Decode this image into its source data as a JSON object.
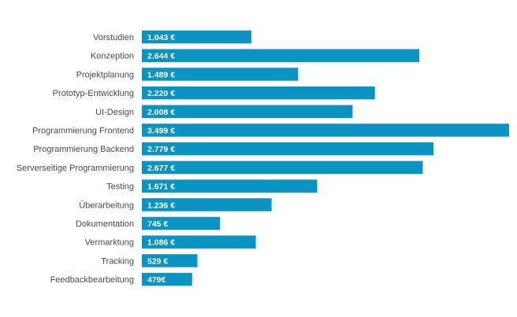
{
  "chart_data": {
    "type": "bar",
    "orientation": "horizontal",
    "categories": [
      "Vorstudien",
      "Konzeption",
      "Projektplanung",
      "Prototyp-Entwicklung",
      "UI-Design",
      "Programmierung Frontend",
      "Programmierung Backend",
      "Serverseitige Programmierung",
      "Testing",
      "Überarbeitung",
      "Dokumentation",
      "Vermarktung",
      "Tracking",
      "Feedbackbearbeitung"
    ],
    "values": [
      1043,
      2644,
      1489,
      2220,
      2008,
      3499,
      2779,
      2677,
      1671,
      1236,
      745,
      1086,
      529,
      479
    ],
    "value_labels": [
      "1.043 €",
      "2.644 €",
      "1.489 €",
      "2.220 €",
      "2.008 €",
      "3.499 €",
      "2.779 €",
      "2.677 €",
      "1.671 €",
      "1.236 €",
      "745 €",
      "1.086 €",
      "529 €",
      "479€"
    ],
    "xlim": [
      0,
      3499
    ],
    "grid": false,
    "colors": {
      "bar": "#0a93c3",
      "label": "#4a4a4a",
      "value_text": "#ffffff"
    }
  }
}
